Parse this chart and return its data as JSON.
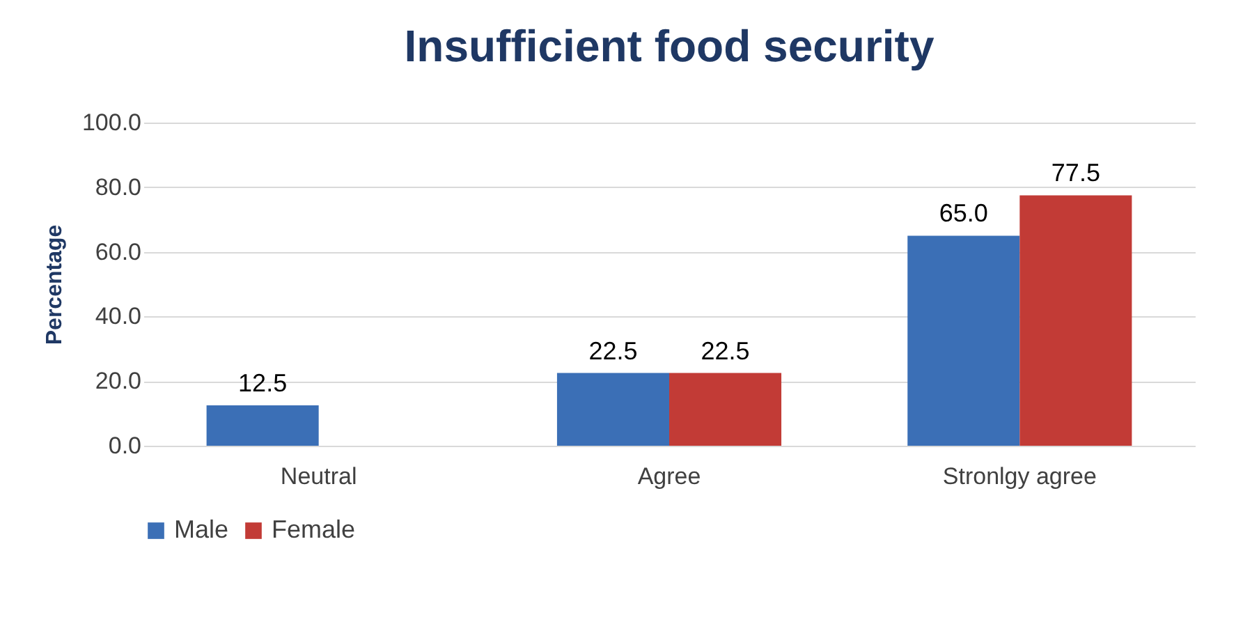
{
  "chart_data": {
    "type": "bar",
    "title": "Insufficient food security",
    "ylabel": "Percentage",
    "categories": [
      "Neutral",
      "Agree",
      "Stronlgy agree"
    ],
    "series": [
      {
        "name": "Male",
        "color": "#3b6fb6",
        "values": [
          12.5,
          22.5,
          65.0
        ],
        "value_labels": [
          "12.5",
          "22.5",
          "65.0"
        ]
      },
      {
        "name": "Female",
        "color": "#c23b36",
        "values": [
          null,
          22.5,
          77.5
        ],
        "value_labels": [
          null,
          "22.5",
          "77.5"
        ]
      }
    ],
    "ylim": [
      0,
      100
    ],
    "yticks": [
      {
        "value": 0,
        "label": "0.0"
      },
      {
        "value": 20,
        "label": "20.0"
      },
      {
        "value": 40,
        "label": "40.0"
      },
      {
        "value": 60,
        "label": "60.0"
      },
      {
        "value": 80,
        "label": "80.0"
      },
      {
        "value": 100,
        "label": "100.0"
      }
    ],
    "grid": "y",
    "legend": "bottom"
  }
}
